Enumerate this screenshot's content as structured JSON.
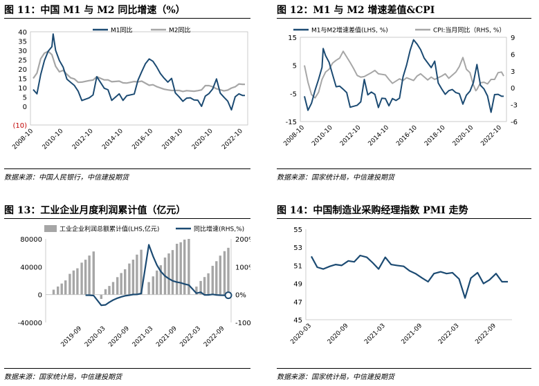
{
  "colors": {
    "navy": "#1B4A72",
    "gray": "#A6A6A6",
    "red": "#C00000"
  },
  "chart_data": [
    {
      "id": "fig11",
      "type": "line",
      "title": "图 11：中国 M1 与 M2 同比增速（%）",
      "source": "数据来源：中国人民银行，中信建投期货",
      "x_ticks": [
        "2008-10",
        "2010-10",
        "2012-10",
        "2014-10",
        "2016-10",
        "2018-10",
        "2020-10",
        "2022-10"
      ],
      "y_ticks": [
        "40",
        "35",
        "30",
        "25",
        "20",
        "15",
        "10",
        "5",
        "0",
        "(10)"
      ],
      "ylim": [
        -10,
        40
      ],
      "legend_position": "top",
      "series": [
        {
          "name": "M1同比",
          "color": "#1B4A72",
          "x": [
            2008.75,
            2009.0,
            2009.25,
            2009.5,
            2009.75,
            2010.0,
            2010.08,
            2010.25,
            2010.5,
            2010.75,
            2011.0,
            2011.25,
            2011.5,
            2011.75,
            2012.0,
            2012.5,
            2012.75,
            2013.0,
            2013.5,
            2013.75,
            2014.0,
            2014.5,
            2014.75,
            2015.0,
            2015.5,
            2015.75,
            2016.0,
            2016.25,
            2016.5,
            2016.75,
            2017.0,
            2017.25,
            2017.5,
            2017.75,
            2018.0,
            2018.25,
            2018.5,
            2018.75,
            2019.0,
            2019.25,
            2019.5,
            2019.75,
            2020.0,
            2020.25,
            2020.5,
            2020.75,
            2021.0,
            2021.25,
            2021.5,
            2021.75,
            2022.0,
            2022.25,
            2022.5,
            2022.75,
            2022.9
          ],
          "values": [
            9.0,
            6.7,
            17.0,
            24.6,
            29.5,
            32.0,
            38.8,
            30.0,
            24.6,
            21.0,
            14.6,
            12.9,
            11.2,
            8.2,
            3.1,
            4.6,
            6.1,
            15.9,
            9.7,
            8.9,
            3.2,
            6.7,
            3.2,
            5.7,
            6.6,
            14.0,
            18.6,
            22.9,
            25.4,
            24.2,
            21.2,
            17.6,
            15.1,
            13.0,
            15.0,
            7.2,
            5.1,
            2.7,
            4.4,
            4.6,
            3.4,
            3.3,
            0.0,
            5.5,
            6.9,
            9.4,
            14.7,
            7.1,
            4.9,
            2.8,
            -1.9,
            5.1,
            6.7,
            5.8,
            5.8
          ]
        },
        {
          "name": "M2同比",
          "color": "#A6A6A6",
          "x": [
            2008.75,
            2009.0,
            2009.25,
            2009.5,
            2009.75,
            2010.0,
            2010.25,
            2010.5,
            2010.75,
            2011.0,
            2011.25,
            2011.5,
            2011.75,
            2012.0,
            2012.5,
            2012.75,
            2013.0,
            2013.5,
            2013.75,
            2014.0,
            2014.5,
            2014.75,
            2015.0,
            2015.5,
            2015.75,
            2016.0,
            2016.5,
            2016.75,
            2017.0,
            2017.5,
            2017.75,
            2018.0,
            2018.5,
            2018.75,
            2019.0,
            2019.5,
            2019.75,
            2020.0,
            2020.25,
            2020.5,
            2020.75,
            2021.0,
            2021.5,
            2021.75,
            2022.0,
            2022.25,
            2022.5,
            2022.75,
            2022.9
          ],
          "values": [
            15.0,
            17.8,
            25.5,
            28.5,
            29.5,
            27.7,
            21.5,
            18.5,
            19.3,
            17.2,
            15.3,
            14.7,
            12.9,
            13.0,
            13.8,
            14.1,
            15.9,
            14.2,
            14.2,
            13.2,
            13.5,
            12.6,
            12.5,
            13.3,
            13.1,
            13.5,
            11.3,
            11.6,
            10.6,
            9.2,
            8.8,
            8.5,
            8.5,
            8.0,
            8.4,
            8.1,
            8.4,
            8.8,
            11.1,
            11.1,
            10.5,
            9.4,
            8.3,
            8.7,
            9.8,
            10.5,
            12.0,
            11.8,
            11.8
          ]
        }
      ]
    },
    {
      "id": "fig12",
      "type": "line",
      "title": "图 12：M1 与 M2 增速差值&CPI",
      "source": "数据来源：国家统计局，中信建投期货",
      "x_ticks": [
        "2008-10",
        "2010-10",
        "2012-10",
        "2014-10",
        "2016-10",
        "2018-10",
        "2020-10",
        "2022-10"
      ],
      "y_ticks_left": [
        "15",
        "5",
        "-5",
        "-15"
      ],
      "y_ticks_right": [
        "9",
        "6",
        "3",
        "0",
        "-3",
        "-6"
      ],
      "ylim_left": [
        -15,
        15
      ],
      "ylim_right": [
        -6,
        9
      ],
      "legend_position": "top",
      "series": [
        {
          "name": "M1与M2增速差值(LHS, %)",
          "color": "#1B4A72",
          "axis": "left",
          "x": [
            2008.75,
            2009.0,
            2009.25,
            2009.5,
            2009.75,
            2010.0,
            2010.08,
            2010.25,
            2010.5,
            2010.75,
            2011.0,
            2011.25,
            2011.5,
            2011.75,
            2012.0,
            2012.5,
            2012.75,
            2013.0,
            2013.25,
            2013.5,
            2013.75,
            2014.0,
            2014.25,
            2014.5,
            2014.75,
            2015.0,
            2015.25,
            2015.5,
            2015.75,
            2016.0,
            2016.25,
            2016.5,
            2016.75,
            2017.0,
            2017.25,
            2017.5,
            2017.75,
            2018.0,
            2018.25,
            2018.5,
            2018.75,
            2019.0,
            2019.25,
            2019.5,
            2019.75,
            2020.0,
            2020.25,
            2020.5,
            2020.75,
            2021.0,
            2021.25,
            2021.5,
            2021.75,
            2022.0,
            2022.25,
            2022.5,
            2022.75,
            2022.9
          ],
          "values": [
            -6.0,
            -11.0,
            -8.5,
            -3.9,
            0.0,
            4.3,
            11.0,
            8.5,
            6.1,
            1.7,
            -2.6,
            -2.4,
            -3.5,
            -4.7,
            -9.9,
            -9.2,
            -8.0,
            0.0,
            -5.5,
            -4.5,
            -5.3,
            -10.0,
            -6.7,
            -6.8,
            -9.4,
            -6.8,
            -7.5,
            -6.7,
            0.9,
            5.1,
            10.3,
            14.1,
            12.6,
            10.6,
            7.6,
            5.9,
            4.2,
            6.5,
            -1.3,
            -3.4,
            -5.3,
            -4.0,
            -3.6,
            -4.7,
            -5.1,
            -8.8,
            -5.6,
            -4.2,
            -1.1,
            5.3,
            -2.1,
            -3.4,
            -5.9,
            -11.7,
            -5.4,
            -5.3,
            -6.0,
            -6.0
          ]
        },
        {
          "name": "CPI:当月同比（RHS, %）",
          "color": "#A6A6A6",
          "axis": "right",
          "x": [
            2008.75,
            2009.0,
            2009.25,
            2009.5,
            2009.75,
            2010.0,
            2010.25,
            2010.5,
            2010.75,
            2011.0,
            2011.25,
            2011.5,
            2011.75,
            2012.0,
            2012.25,
            2012.5,
            2012.75,
            2013.0,
            2013.5,
            2013.75,
            2014.0,
            2014.5,
            2014.75,
            2015.0,
            2015.5,
            2015.75,
            2016.0,
            2016.5,
            2016.75,
            2017.0,
            2017.5,
            2017.75,
            2018.0,
            2018.5,
            2018.75,
            2019.0,
            2019.5,
            2019.75,
            2020.0,
            2020.25,
            2020.5,
            2020.75,
            2020.92,
            2021.0,
            2021.25,
            2021.5,
            2021.75,
            2022.0,
            2022.25,
            2022.5,
            2022.75,
            2022.9
          ],
          "values": [
            4.0,
            1.0,
            -1.2,
            -1.8,
            -0.8,
            1.5,
            2.8,
            3.3,
            4.4,
            4.9,
            5.3,
            6.5,
            5.5,
            4.5,
            3.4,
            2.2,
            1.9,
            2.0,
            2.7,
            3.1,
            2.5,
            2.3,
            1.5,
            0.8,
            1.6,
            1.3,
            1.8,
            1.3,
            2.1,
            2.5,
            1.4,
            1.9,
            1.5,
            2.1,
            2.5,
            1.7,
            2.8,
            3.8,
            5.4,
            3.3,
            2.7,
            0.5,
            -0.5,
            -0.3,
            0.9,
            1.0,
            0.7,
            1.5,
            1.5,
            2.7,
            2.8,
            2.1
          ]
        }
      ]
    },
    {
      "id": "fig13",
      "type": "bar",
      "title": "图 13：工业企业月度利润累计值（亿元）",
      "source": "数据来源：国家统计局，中信建投期货",
      "x_ticks": [
        "2019-09",
        "2020-03",
        "2020-09",
        "2021-03",
        "2021-09",
        "2022-03",
        "2022-09"
      ],
      "y_ticks_left": [
        "80000",
        "40000",
        "0",
        "-40000"
      ],
      "y_ticks_right": [
        "200%",
        "100%",
        "0%",
        "-100%"
      ],
      "ylim_left": [
        -40000,
        80000
      ],
      "ylim_right": [
        -100,
        200
      ],
      "legend_position": "top",
      "series": [
        {
          "name": "工业企业利润总额累计值(LHS,亿元)",
          "color": "#A6A6A6",
          "axis": "left",
          "x": [
            2019.0,
            2019.08,
            2019.17,
            2019.25,
            2019.33,
            2019.42,
            2019.5,
            2019.58,
            2019.67,
            2019.75,
            2019.83,
            2019.92,
            2020.0,
            2020.08,
            2020.17,
            2020.25,
            2020.33,
            2020.42,
            2020.5,
            2020.58,
            2020.67,
            2020.75,
            2020.83,
            2020.92,
            2021.0,
            2021.08,
            2021.17,
            2021.25,
            2021.33,
            2021.42,
            2021.5,
            2021.58,
            2021.67,
            2021.75,
            2021.83,
            2021.92,
            2022.0,
            2022.08,
            2022.17,
            2022.25,
            2022.33,
            2022.42,
            2022.5,
            2022.58,
            2022.67,
            2022.75
          ],
          "values": [
            0,
            7080,
            11650,
            15930,
            20440,
            29840,
            34650,
            37810,
            45930,
            50160,
            56140,
            61990,
            0,
            -6200,
            7820,
            12450,
            18100,
            25120,
            31000,
            36430,
            44670,
            50220,
            57440,
            64520,
            0,
            17990,
            26200,
            34580,
            42200,
            53280,
            59180,
            64000,
            73040,
            75200,
            79000,
            87090,
            0,
            11580,
            19600,
            25260,
            30630,
            41400,
            48000,
            56000,
            62440,
            67250
          ]
        },
        {
          "name": "同比增速(RHS,%)",
          "color": "#1B4A72",
          "axis": "right",
          "x": [
            2019.75,
            2019.83,
            2019.92,
            2020.08,
            2020.17,
            2020.25,
            2020.33,
            2020.42,
            2020.5,
            2020.58,
            2020.67,
            2020.75,
            2020.83,
            2020.92,
            2021.08,
            2021.17,
            2021.25,
            2021.33,
            2021.42,
            2021.5,
            2021.58,
            2021.67,
            2021.75,
            2021.83,
            2021.92,
            2022.08,
            2022.17,
            2022.25,
            2022.33,
            2022.42,
            2022.5,
            2022.58,
            2022.67,
            2022.75
          ],
          "values": [
            -2.1,
            -2.1,
            -3.3,
            -38.3,
            -36.7,
            -27.4,
            -19.3,
            -12.8,
            -8.1,
            -4.4,
            -2.1,
            0.3,
            0.7,
            4.1,
            178.9,
            137.3,
            106.0,
            83.4,
            66.9,
            57.3,
            49.5,
            44.7,
            42.2,
            38.0,
            34.3,
            5.0,
            8.5,
            -1.0,
            -1.0,
            1.0,
            -1.1,
            -2.1,
            -2.3,
            -2.3
          ]
        }
      ]
    },
    {
      "id": "fig14",
      "type": "line",
      "title": "图 14：中国制造业采购经理指数 PMI 走势",
      "source": "数据来源：国家统计局，中信建投期货",
      "x_ticks": [
        "2020-03",
        "2020-09",
        "2021-03",
        "2021-09",
        "2022-03",
        "2022-09"
      ],
      "y_ticks": [
        "55",
        "53",
        "51",
        "49",
        "47",
        "45"
      ],
      "ylim": [
        45,
        55
      ],
      "series": [
        {
          "name": "PMI",
          "color": "#1B4A72",
          "x": [
            2020.17,
            2020.25,
            2020.33,
            2020.42,
            2020.5,
            2020.58,
            2020.67,
            2020.75,
            2020.83,
            2020.92,
            2021.0,
            2021.08,
            2021.17,
            2021.25,
            2021.33,
            2021.42,
            2021.5,
            2021.58,
            2021.67,
            2021.75,
            2021.83,
            2021.92,
            2022.0,
            2022.08,
            2022.17,
            2022.25,
            2022.33,
            2022.42,
            2022.5,
            2022.58,
            2022.67,
            2022.75,
            2022.83
          ],
          "values": [
            52.0,
            50.8,
            50.6,
            50.9,
            51.1,
            51.0,
            51.5,
            51.4,
            52.1,
            51.9,
            51.3,
            50.6,
            51.9,
            51.1,
            51.0,
            50.9,
            50.4,
            50.1,
            49.6,
            49.2,
            50.1,
            50.3,
            50.1,
            50.2,
            49.5,
            47.4,
            49.6,
            50.2,
            49.0,
            49.4,
            50.1,
            49.2,
            49.2
          ]
        }
      ]
    }
  ]
}
